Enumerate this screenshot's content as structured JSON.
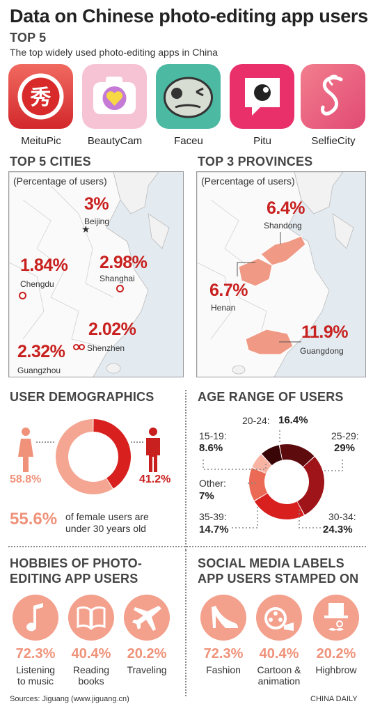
{
  "title": "Data on Chinese photo-editing app users",
  "top5": {
    "heading": "TOP 5",
    "subtitle": "The top widely used photo-editing apps in China",
    "apps": [
      {
        "name": "MeituPic",
        "icon": "meitupic-logo",
        "color": "#e03a3a"
      },
      {
        "name": "BeautyCam",
        "icon": "beautycam-logo",
        "color": "#f7c2cf"
      },
      {
        "name": "Faceu",
        "icon": "faceu-logo",
        "color": "#46b8a2"
      },
      {
        "name": "Pitu",
        "icon": "pitu-logo",
        "color": "#e8306a"
      },
      {
        "name": "SelfieCity",
        "icon": "selfiecity-logo",
        "color": "#e8547a"
      }
    ]
  },
  "cities": {
    "heading": "TOP 5 CITIES",
    "note": "(Percentage of users)",
    "items": [
      {
        "name": "Beijing",
        "value": "3%"
      },
      {
        "name": "Chengdu",
        "value": "1.84%"
      },
      {
        "name": "Shanghai",
        "value": "2.98%"
      },
      {
        "name": "Shenzhen",
        "value": "2.02%"
      },
      {
        "name": "Guangzhou",
        "value": "2.32%"
      }
    ]
  },
  "provinces": {
    "heading": "TOP 3 PROVINCES",
    "note": "(Percentage of users)",
    "items": [
      {
        "name": "Shandong",
        "value": "6.4%"
      },
      {
        "name": "Henan",
        "value": "6.7%"
      },
      {
        "name": "Guangdong",
        "value": "11.9%"
      }
    ]
  },
  "demographics": {
    "heading": "USER DEMOGRAPHICS",
    "female": "58.8%",
    "male": "41.2%",
    "under30_value": "55.6%",
    "under30_text_1": "of female users are",
    "under30_text_2": "under 30 years old"
  },
  "age": {
    "heading": "AGE RANGE OF USERS",
    "labels": [
      {
        "range": "15-19:",
        "value": "8.6%"
      },
      {
        "range": "20-24:",
        "value": "16.4%"
      },
      {
        "range": "25-29:",
        "value": "29%"
      },
      {
        "range": "30-34:",
        "value": "24.3%"
      },
      {
        "range": "35-39:",
        "value": "14.7%"
      },
      {
        "range": "Other:",
        "value": "7%"
      }
    ]
  },
  "hobbies": {
    "heading_1": "HOBBIES OF PHOTO-",
    "heading_2": "EDITING APP USERS",
    "items": [
      {
        "pct": "72.3%",
        "label_1": "Listening",
        "label_2": "to music",
        "icon": "music-note-icon"
      },
      {
        "pct": "40.4%",
        "label_1": "Reading",
        "label_2": "books",
        "icon": "book-icon"
      },
      {
        "pct": "20.2%",
        "label_1": "Traveling",
        "label_2": "",
        "icon": "airplane-icon"
      }
    ]
  },
  "social": {
    "heading_1": "SOCIAL MEDIA LABELS",
    "heading_2": "APP USERS STAMPED ON",
    "items": [
      {
        "pct": "72.3%",
        "label_1": "Fashion",
        "label_2": "",
        "icon": "high-heel-icon"
      },
      {
        "pct": "40.4%",
        "label_1": "Cartoon &",
        "label_2": "animation",
        "icon": "film-reel-icon"
      },
      {
        "pct": "20.2%",
        "label_1": "Highbrow",
        "label_2": "",
        "icon": "top-hat-icon"
      }
    ]
  },
  "footer": {
    "source": "Sources: Jiguang (www.jiguang.cn)",
    "credit": "CHINA DAILY"
  },
  "colors": {
    "red": "#c8201e",
    "salmon": "#f0927a",
    "dark_red": "#6e0d0f"
  },
  "chart_data": [
    {
      "type": "pie",
      "categories": [
        "Female",
        "Male"
      ],
      "values": [
        58.8,
        41.2
      ],
      "title": "USER DEMOGRAPHICS"
    },
    {
      "type": "pie",
      "categories": [
        "15-19",
        "20-24",
        "25-29",
        "30-34",
        "35-39",
        "Other"
      ],
      "values": [
        8.6,
        16.4,
        29,
        24.3,
        14.7,
        7
      ],
      "title": "AGE RANGE OF USERS"
    },
    {
      "type": "bar",
      "categories": [
        "Beijing",
        "Chengdu",
        "Shanghai",
        "Shenzhen",
        "Guangzhou"
      ],
      "values": [
        3,
        1.84,
        2.98,
        2.02,
        2.32
      ],
      "title": "TOP 5 CITIES"
    },
    {
      "type": "bar",
      "categories": [
        "Shandong",
        "Henan",
        "Guangdong"
      ],
      "values": [
        6.4,
        6.7,
        11.9
      ],
      "title": "TOP 3 PROVINCES"
    }
  ]
}
